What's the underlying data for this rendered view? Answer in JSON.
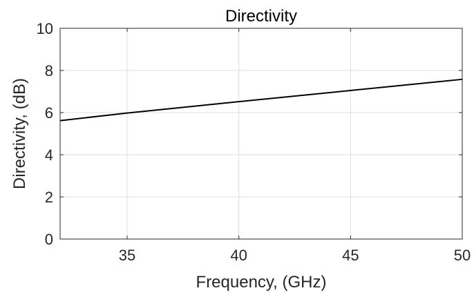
{
  "chart_data": {
    "type": "line",
    "title": "Directivity",
    "xlabel": "Frequency, (GHz)",
    "ylabel": "Directivity, (dB)",
    "xlim": [
      32,
      50
    ],
    "ylim": [
      0,
      10
    ],
    "xticks": [
      35,
      40,
      45,
      50
    ],
    "yticks": [
      0,
      2,
      4,
      6,
      8,
      10
    ],
    "grid": true,
    "series": [
      {
        "color": "#000000",
        "x": [
          32,
          35,
          40,
          45,
          50
        ],
        "y": [
          5.62,
          5.98,
          6.52,
          7.05,
          7.58
        ]
      }
    ]
  }
}
